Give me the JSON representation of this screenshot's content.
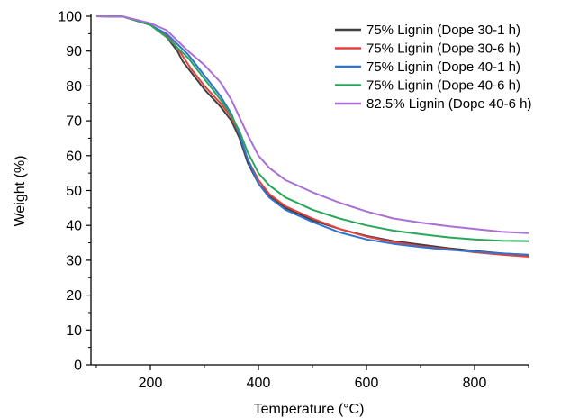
{
  "chart_data": {
    "type": "line",
    "title": "",
    "xlabel": "Temperature (°C)",
    "ylabel": "Weight (%)",
    "xlim": [
      90,
      900
    ],
    "ylim": [
      0,
      100
    ],
    "x_ticks": [
      200,
      400,
      600,
      800
    ],
    "x_tick_labels": [
      "200",
      "400",
      "600",
      "800"
    ],
    "y_ticks": [
      0,
      10,
      20,
      30,
      40,
      50,
      60,
      70,
      80,
      90,
      100
    ],
    "y_tick_labels": [
      "0",
      "10",
      "20",
      "30",
      "40",
      "50",
      "60",
      "70",
      "80",
      "90",
      "100"
    ],
    "grid": false,
    "legend_position": "top-right",
    "series": [
      {
        "name": "75% Lignin (Dope 30-1 h)",
        "color": "#404040",
        "points": [
          [
            100,
            100
          ],
          [
            150,
            99.9
          ],
          [
            200,
            97.5
          ],
          [
            230,
            94
          ],
          [
            250,
            90
          ],
          [
            260,
            87
          ],
          [
            275,
            84
          ],
          [
            300,
            79
          ],
          [
            330,
            74
          ],
          [
            350,
            70
          ],
          [
            365,
            65
          ],
          [
            380,
            58
          ],
          [
            400,
            52
          ],
          [
            420,
            48.5
          ],
          [
            450,
            45
          ],
          [
            500,
            41.5
          ],
          [
            550,
            39
          ],
          [
            600,
            37
          ],
          [
            650,
            35.5
          ],
          [
            700,
            34.5
          ],
          [
            750,
            33.5
          ],
          [
            800,
            32.7
          ],
          [
            850,
            32
          ],
          [
            900,
            31.5
          ]
        ]
      },
      {
        "name": "75% Lignin (Dope 30-6 h)",
        "color": "#e8403c",
        "points": [
          [
            100,
            100
          ],
          [
            150,
            99.9
          ],
          [
            200,
            97.5
          ],
          [
            230,
            94.5
          ],
          [
            250,
            91
          ],
          [
            260,
            88.5
          ],
          [
            275,
            85
          ],
          [
            300,
            80
          ],
          [
            330,
            75
          ],
          [
            350,
            71
          ],
          [
            365,
            66
          ],
          [
            380,
            59
          ],
          [
            400,
            53
          ],
          [
            420,
            49
          ],
          [
            450,
            45.5
          ],
          [
            500,
            42
          ],
          [
            550,
            39
          ],
          [
            600,
            36.8
          ],
          [
            650,
            35.2
          ],
          [
            700,
            34
          ],
          [
            750,
            33.2
          ],
          [
            800,
            32.3
          ],
          [
            850,
            31.6
          ],
          [
            900,
            31
          ]
        ]
      },
      {
        "name": "75% Lignin (Dope 40-1 h)",
        "color": "#2f74d0",
        "points": [
          [
            100,
            100
          ],
          [
            150,
            99.9
          ],
          [
            200,
            97.5
          ],
          [
            230,
            95
          ],
          [
            250,
            92
          ],
          [
            270,
            89
          ],
          [
            290,
            85
          ],
          [
            310,
            81
          ],
          [
            330,
            77
          ],
          [
            350,
            72
          ],
          [
            365,
            66
          ],
          [
            380,
            59
          ],
          [
            400,
            52
          ],
          [
            420,
            48
          ],
          [
            450,
            44.5
          ],
          [
            500,
            41
          ],
          [
            550,
            38
          ],
          [
            600,
            36
          ],
          [
            650,
            34.7
          ],
          [
            700,
            33.8
          ],
          [
            750,
            33
          ],
          [
            800,
            32.5
          ],
          [
            850,
            32
          ],
          [
            900,
            31.6
          ]
        ]
      },
      {
        "name": "75% Lignin (Dope 40-6 h)",
        "color": "#2aa65a",
        "points": [
          [
            100,
            100
          ],
          [
            150,
            99.9
          ],
          [
            200,
            97.5
          ],
          [
            230,
            94
          ],
          [
            250,
            91
          ],
          [
            270,
            88
          ],
          [
            300,
            82
          ],
          [
            330,
            76
          ],
          [
            350,
            71.5
          ],
          [
            365,
            67
          ],
          [
            380,
            61
          ],
          [
            400,
            55
          ],
          [
            420,
            51.5
          ],
          [
            450,
            48
          ],
          [
            500,
            44.5
          ],
          [
            550,
            42
          ],
          [
            600,
            40
          ],
          [
            650,
            38.5
          ],
          [
            700,
            37.5
          ],
          [
            750,
            36.6
          ],
          [
            800,
            36
          ],
          [
            850,
            35.6
          ],
          [
            900,
            35.5
          ]
        ]
      },
      {
        "name": "82.5% Lignin (Dope 40-6 h)",
        "color": "#a96fd4",
        "points": [
          [
            100,
            100
          ],
          [
            150,
            99.9
          ],
          [
            200,
            98
          ],
          [
            230,
            96
          ],
          [
            250,
            93
          ],
          [
            270,
            90
          ],
          [
            300,
            86
          ],
          [
            330,
            81
          ],
          [
            350,
            76
          ],
          [
            365,
            71
          ],
          [
            380,
            66
          ],
          [
            400,
            60
          ],
          [
            420,
            56.5
          ],
          [
            450,
            53
          ],
          [
            500,
            49.5
          ],
          [
            550,
            46.5
          ],
          [
            600,
            44
          ],
          [
            650,
            42
          ],
          [
            700,
            40.8
          ],
          [
            750,
            39.8
          ],
          [
            800,
            39
          ],
          [
            850,
            38.2
          ],
          [
            900,
            37.8
          ]
        ]
      }
    ]
  }
}
